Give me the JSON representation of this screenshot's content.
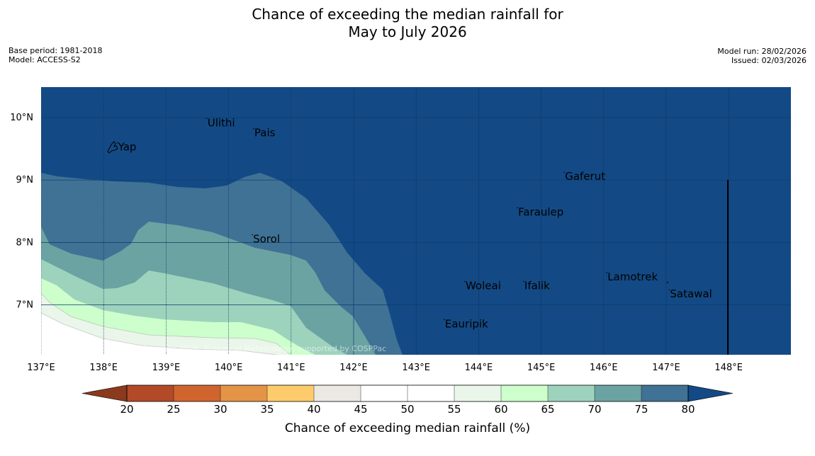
{
  "title": {
    "line1": "Chance of exceeding the median rainfall for",
    "line2": "May to July 2026"
  },
  "metadata": {
    "base_period": "Base period: 1981-2018",
    "model": "Model: ACCESS-S2",
    "model_run": "Model run: 28/02/2026",
    "issued": "Issued: 02/03/2026"
  },
  "map": {
    "lat_labels": [
      "10°N",
      "9°N",
      "8°N",
      "7°N"
    ],
    "lon_labels": [
      "137°E",
      "138°E",
      "139°E",
      "140°E",
      "141°E",
      "142°E",
      "143°E",
      "144°E",
      "145°E",
      "146°E",
      "147°E",
      "148°E"
    ],
    "places": [
      {
        "name": "Ulithi",
        "lon": 139.65,
        "lat": 9.86
      },
      {
        "name": "Pais",
        "lon": 140.4,
        "lat": 9.7
      },
      {
        "name": "Yap",
        "lon": 138.22,
        "lat": 9.47
      },
      {
        "name": "Gaferut",
        "lon": 145.37,
        "lat": 9.0
      },
      {
        "name": "Faraulep",
        "lon": 144.62,
        "lat": 8.43
      },
      {
        "name": "Sorol",
        "lon": 140.38,
        "lat": 8.0
      },
      {
        "name": "Lamotrek",
        "lon": 146.05,
        "lat": 7.39
      },
      {
        "name": "Woleai",
        "lon": 143.78,
        "lat": 7.25
      },
      {
        "name": "Ifalik",
        "lon": 144.72,
        "lat": 7.25
      },
      {
        "name": "Satawal",
        "lon": 147.05,
        "lat": 7.12
      },
      {
        "name": "Eauripik",
        "lon": 143.45,
        "lat": 6.64
      }
    ],
    "attribution": "© Commonwealth of Australia 2026, Bureau of Meteorology, supported by COSPPac"
  },
  "colorbar": {
    "label": "Chance of exceeding median rainfall (%)",
    "ticks": [
      "20",
      "25",
      "30",
      "35",
      "40",
      "45",
      "50",
      "55",
      "60",
      "65",
      "70",
      "75",
      "80"
    ],
    "under_color": "#8b3a1e",
    "over_color": "#134a85",
    "colors": [
      "#b24a28",
      "#d0642f",
      "#e39447",
      "#fdcb6b",
      "#ece8e4",
      "#ffffff",
      "#ffffff",
      "#eaf6ea",
      "#ccffcc",
      "#9dd3bd",
      "#6ba3a3",
      "#3f7295"
    ]
  }
}
